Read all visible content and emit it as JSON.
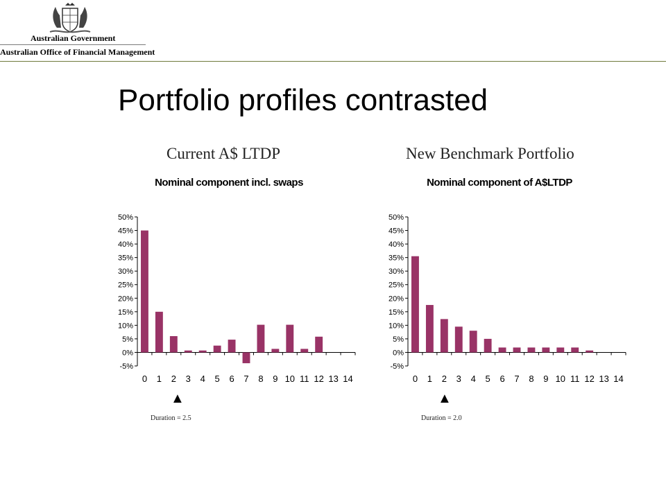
{
  "header": {
    "government": "Australian Government",
    "office": "Australian Office of Financial Management"
  },
  "slide_title": "Portfolio profiles contrasted",
  "colors": {
    "bar": "#993366",
    "rule": "#6e7a3a"
  },
  "charts": [
    {
      "heading": "Current A$ LTDP",
      "marker_icon": "up-triangle-icon",
      "duration_label": "Duration = 2.5"
    },
    {
      "heading": "New Benchmark Portfolio",
      "marker_icon": "up-triangle-icon",
      "duration_label": "Duration = 2.0"
    }
  ],
  "chart_data": [
    {
      "type": "bar",
      "title": "Nominal component incl. swaps",
      "categories": [
        "0",
        "1",
        "2",
        "3",
        "4",
        "5",
        "6",
        "7",
        "8",
        "9",
        "10",
        "11",
        "12",
        "13",
        "14"
      ],
      "values": [
        45,
        15,
        6,
        0.7,
        0.7,
        2.5,
        4.7,
        -4,
        10.2,
        1.3,
        10.2,
        1.3,
        5.8,
        0,
        0
      ],
      "ylim": [
        -5,
        50
      ],
      "yticks": [
        "-5%",
        "0%",
        "5%",
        "10%",
        "15%",
        "20%",
        "25%",
        "30%",
        "35%",
        "40%",
        "45%",
        "50%"
      ],
      "grid": false
    },
    {
      "type": "bar",
      "title": "Nominal component of A$LTDP",
      "categories": [
        "0",
        "1",
        "2",
        "3",
        "4",
        "5",
        "6",
        "7",
        "8",
        "9",
        "10",
        "11",
        "12",
        "13",
        "14"
      ],
      "values": [
        35.5,
        17.5,
        12.3,
        9.5,
        8,
        5,
        1.8,
        1.8,
        1.8,
        1.8,
        1.8,
        1.8,
        0.7,
        0,
        0
      ],
      "ylim": [
        -5,
        50
      ],
      "yticks": [
        "-5%",
        "0%",
        "5%",
        "10%",
        "15%",
        "20%",
        "25%",
        "30%",
        "35%",
        "40%",
        "45%",
        "50%"
      ],
      "grid": false
    }
  ]
}
